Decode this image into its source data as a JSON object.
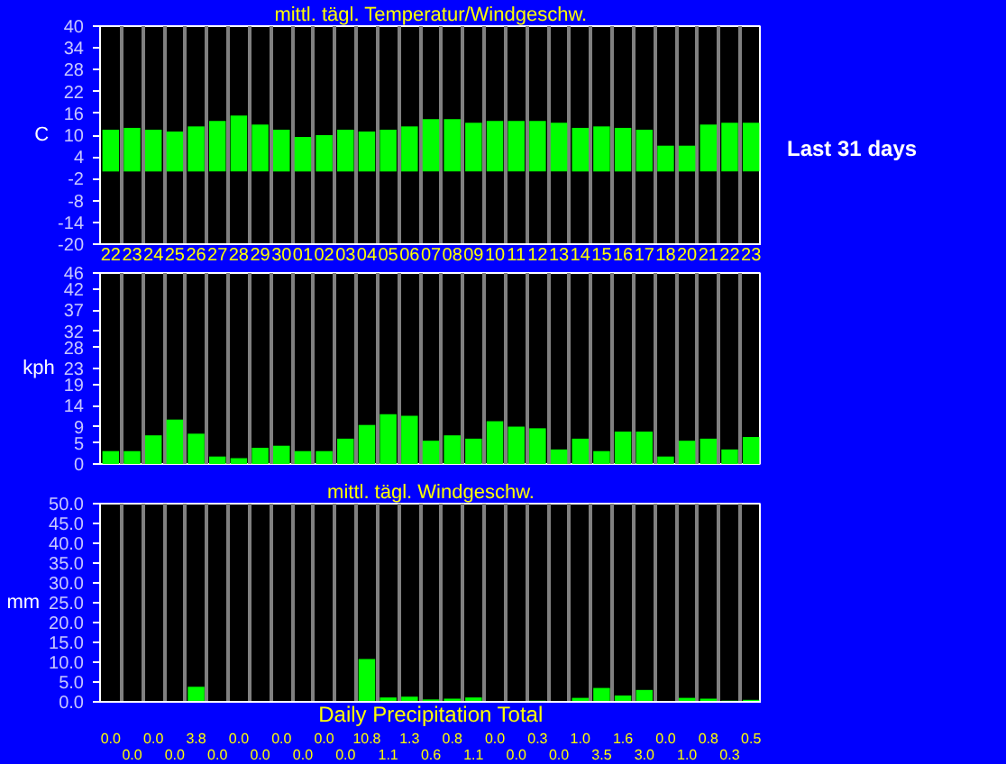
{
  "chart_data": [
    {
      "type": "bar",
      "title": "mittl. tägl. Temperatur/Windgeschw.",
      "ylabel": "C",
      "annotations": [
        "Last 31 days"
      ],
      "categories": [
        "22",
        "23",
        "24",
        "25",
        "26",
        "27",
        "28",
        "29",
        "30",
        "01",
        "02",
        "03",
        "04",
        "05",
        "06",
        "07",
        "08",
        "09",
        "10",
        "11",
        "12",
        "13",
        "14",
        "15",
        "16",
        "17",
        "18",
        "20",
        "21",
        "22",
        "23"
      ],
      "values": [
        11.5,
        12.0,
        11.5,
        11.0,
        12.4,
        13.9,
        15.4,
        12.9,
        11.5,
        9.5,
        10.0,
        11.5,
        11.0,
        11.5,
        12.4,
        14.4,
        14.4,
        13.4,
        13.9,
        13.9,
        13.9,
        13.4,
        12.0,
        12.4,
        12.0,
        11.5,
        7.1,
        7.1,
        12.9,
        13.4,
        13.4
      ],
      "color": "#00ff00",
      "ylim": [
        -20,
        40
      ],
      "yticks": [
        -20,
        -14,
        -8,
        -2,
        4,
        10,
        16,
        22,
        28,
        34,
        40
      ],
      "grid": "x"
    },
    {
      "type": "bar",
      "ylabel": "kph",
      "tick_labels": "y",
      "categories": [
        "22",
        "23",
        "24",
        "25",
        "26",
        "27",
        "28",
        "29",
        "30",
        "01",
        "02",
        "03",
        "04",
        "05",
        "06",
        "07",
        "08",
        "09",
        "10",
        "11",
        "12",
        "13",
        "14",
        "15",
        "16",
        "17",
        "18",
        "20",
        "21",
        "22",
        "23"
      ],
      "values": [
        3.1,
        3.1,
        6.9,
        10.7,
        7.3,
        1.8,
        1.4,
        3.9,
        4.4,
        3.1,
        3.1,
        6.1,
        9.4,
        12.0,
        11.6,
        5.6,
        6.9,
        6.1,
        10.3,
        9.0,
        8.6,
        3.5,
        6.1,
        3.1,
        7.8,
        7.8,
        1.8,
        5.6,
        6.1,
        3.5,
        6.5
      ],
      "color": "#00ff00",
      "ylim": [
        0,
        46
      ],
      "yticks": [
        0,
        5,
        9,
        14,
        19,
        23,
        28,
        32,
        37,
        42,
        46
      ],
      "grid": "x"
    },
    {
      "type": "bar",
      "title": "mittl. tägl. Windgeschw.",
      "xlabel": "Daily Precipitation Total",
      "ylabel": "mm",
      "tick_labels": "y",
      "data_labels": true,
      "categories": [
        "22",
        "23",
        "24",
        "25",
        "26",
        "27",
        "28",
        "29",
        "30",
        "01",
        "02",
        "03",
        "04",
        "05",
        "06",
        "07",
        "08",
        "09",
        "10",
        "11",
        "12",
        "13",
        "14",
        "15",
        "16",
        "17",
        "18",
        "20",
        "21",
        "22",
        "23"
      ],
      "values": [
        0.0,
        0.0,
        0.0,
        0.0,
        3.8,
        0.0,
        0.0,
        0.0,
        0.0,
        0.0,
        0.0,
        0.0,
        10.8,
        1.1,
        1.3,
        0.6,
        0.8,
        1.1,
        0.0,
        0.0,
        0.3,
        0.0,
        1.0,
        3.5,
        1.6,
        3.0,
        0.0,
        1.0,
        0.8,
        0.3,
        0.5
      ],
      "value_labels": [
        "0.0",
        "0.0",
        "0.0",
        "0.0",
        "3.8",
        "0.0",
        "0.0",
        "0.0",
        "0.0",
        "0.0",
        "0.0",
        "0.0",
        "10.8",
        "1.1",
        "1.3",
        "0.6",
        "0.8",
        "1.1",
        "0.0",
        "0.0",
        "0.3",
        "0.0",
        "1.0",
        "3.5",
        "1.6",
        "3.0",
        "0.0",
        "1.0",
        "0.8",
        "0.3",
        "0.5"
      ],
      "color": "#00ff00",
      "ylim": [
        0,
        50
      ],
      "yticks": [
        {
          "value": 0,
          "label": "0.0"
        },
        {
          "value": 5,
          "label": "5.0"
        },
        {
          "value": 10,
          "label": "10.0"
        },
        {
          "value": 15,
          "label": "15.0"
        },
        {
          "value": 20,
          "label": "20.0"
        },
        {
          "value": 25,
          "label": "25.0"
        },
        {
          "value": 30,
          "label": "30.0"
        },
        {
          "value": 35,
          "label": "35.0"
        },
        {
          "value": 40,
          "label": "40.0"
        },
        {
          "value": 45,
          "label": "45.0"
        },
        {
          "value": 50,
          "label": "50.0"
        }
      ],
      "grid": "x"
    }
  ]
}
